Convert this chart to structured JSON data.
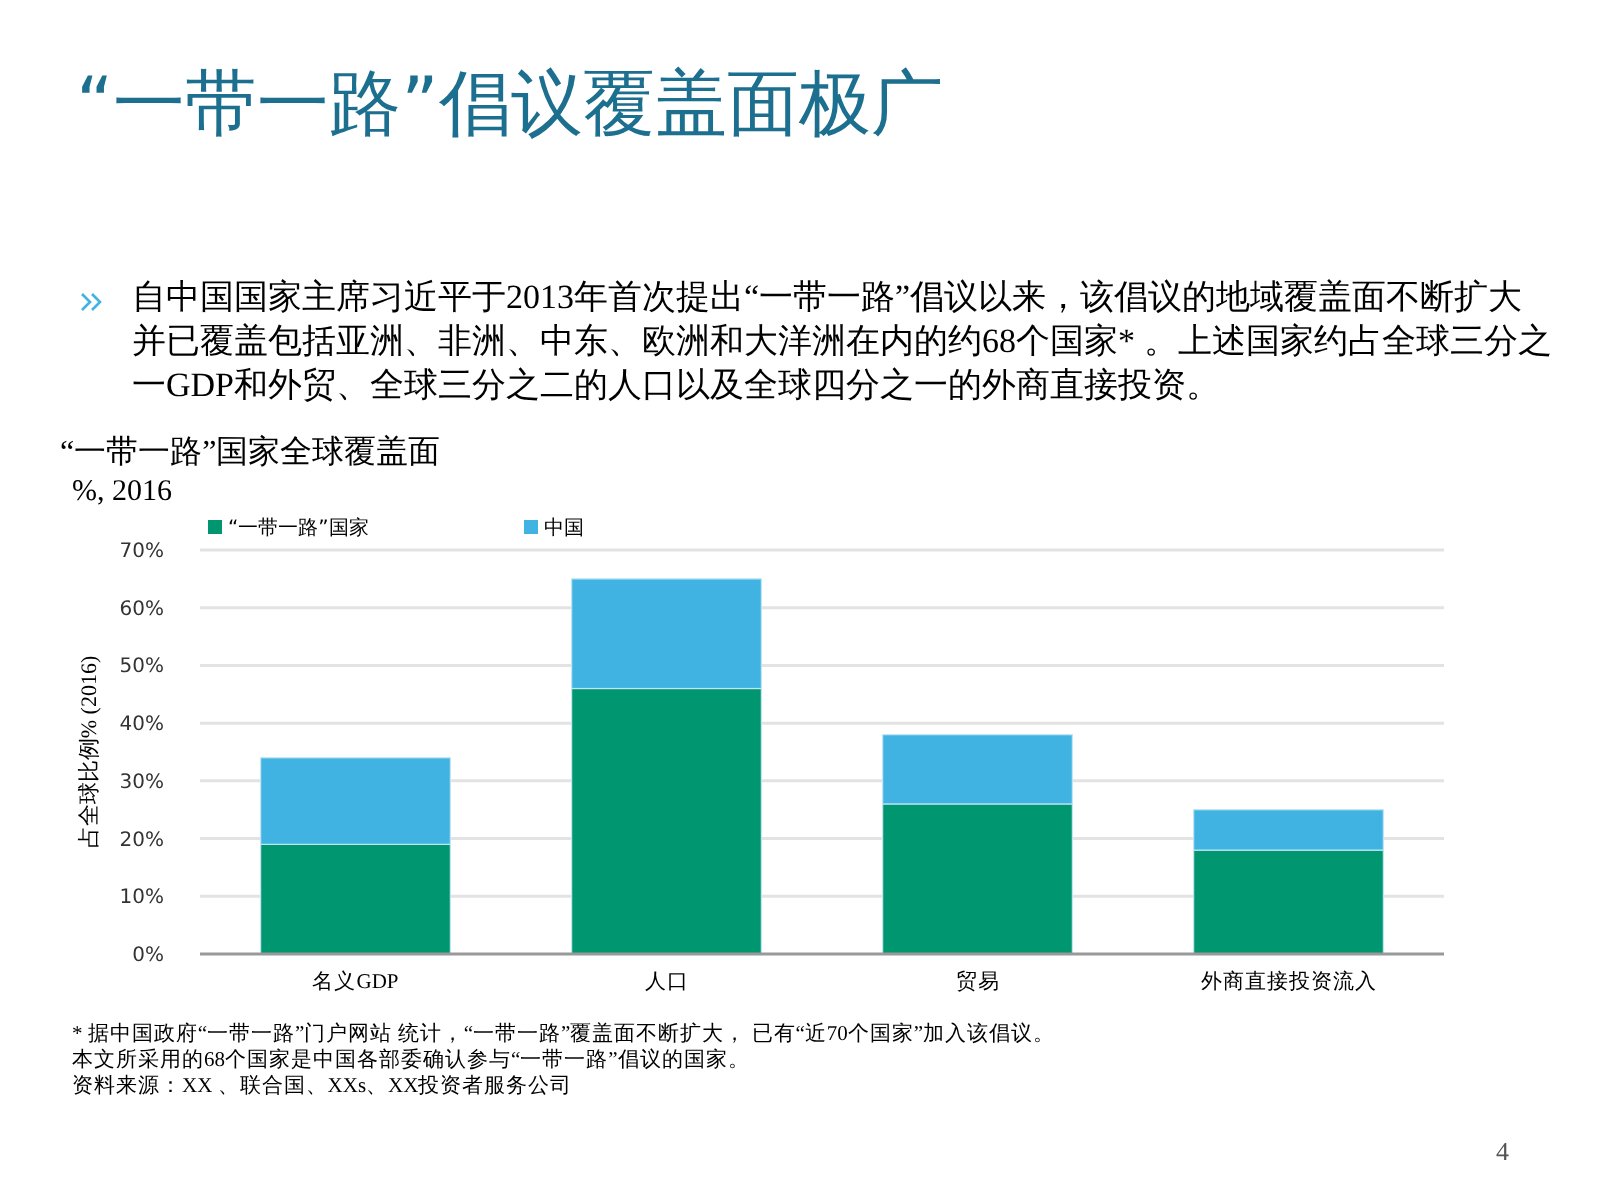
{
  "chart_data": {
    "type": "bar",
    "stacked": true,
    "title": "“一带一路”倡议覆盖面极广",
    "subtitle": "自中国国家主席习近平于2013年首次提出“一带一路”倡议以来，该倡议的地域覆盖面不断扩大并已覆盖包括亚洲、非洲、中东、欧洲和大洋洲在内的约68个国家* 。上述国家约占全球三分之一GDP和外贸、全球三分之二的人口以及全球四分之一的外商直接投资。",
    "ylabel": "占全球比例% (2016)",
    "categories": [
      "名义GDP",
      "人口",
      "贸易",
      "外商直接投资流入"
    ],
    "series": [
      {
        "name": "“一带一路”国家",
        "color": "#009670",
        "values": [
          19,
          46,
          26,
          18
        ]
      },
      {
        "name": "中国",
        "color": "#41b3e3",
        "values": [
          15,
          19,
          12,
          7
        ]
      }
    ],
    "ylim": [
      0,
      70
    ],
    "yticks": [
      {
        "value": 0,
        "label": "0%"
      },
      {
        "value": 10,
        "label": "10%"
      },
      {
        "value": 20,
        "label": "20%"
      },
      {
        "value": 30,
        "label": "30%"
      },
      {
        "value": 40,
        "label": "40%"
      },
      {
        "value": 50,
        "label": "50%"
      },
      {
        "value": 60,
        "label": "60%"
      },
      {
        "value": 70,
        "label": "70%"
      }
    ],
    "grid": "y",
    "legend": "top left",
    "annotations": [
      "“一带一路”国家全球覆盖面",
      "%, 2016",
      "* 据中国政府“一带一路”门户网站 统计，“一带一路”覆盖面不断扩大， 已有“近70个国家”加入该倡议。",
      "本文所采用的68个国家是中国各部委确认参与“一带一路”倡议的国家。",
      "资料来源：XX 、联合国、XXs、XX投资者服务公司",
      "4"
    ]
  }
}
